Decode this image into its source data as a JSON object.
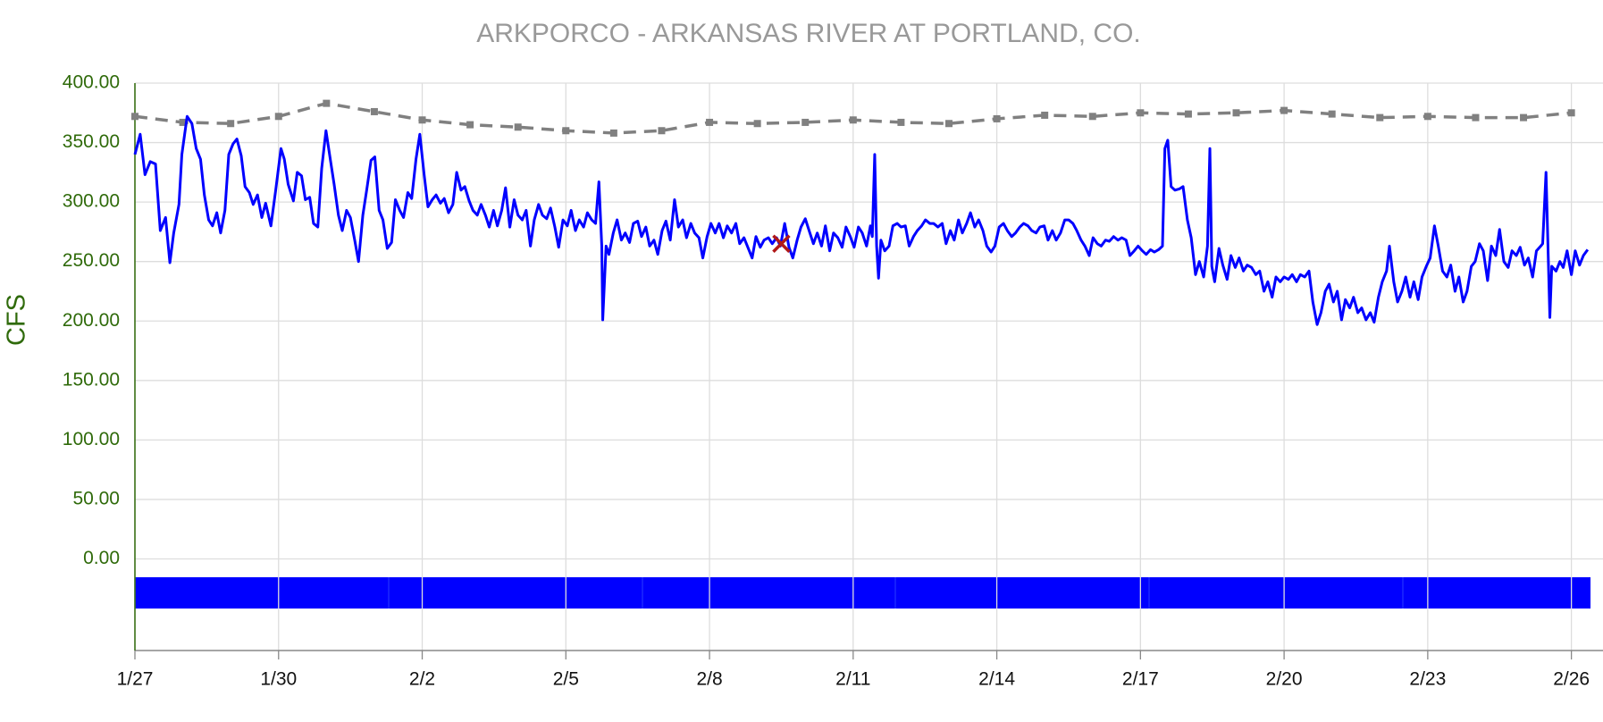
{
  "chart_data": {
    "type": "line",
    "title": "ARKPORCO - ARKANSAS RIVER AT PORTLAND, CO.",
    "y_label": "CFS",
    "xlim": [
      0,
      30.66
    ],
    "xticks": [
      {
        "value": 0,
        "label": "1/27"
      },
      {
        "value": 3,
        "label": "1/30"
      },
      {
        "value": 6,
        "label": "2/2"
      },
      {
        "value": 9,
        "label": "2/5"
      },
      {
        "value": 12,
        "label": "2/8"
      },
      {
        "value": 15,
        "label": "2/11"
      },
      {
        "value": 18,
        "label": "2/14"
      },
      {
        "value": 21,
        "label": "2/17"
      },
      {
        "value": 24,
        "label": "2/20"
      },
      {
        "value": 27,
        "label": "2/23"
      },
      {
        "value": 30,
        "label": "2/26"
      }
    ],
    "ylim": [
      -77,
      400
    ],
    "yticks": [
      {
        "value": 0,
        "label": "0.00"
      },
      {
        "value": 50,
        "label": "50.00"
      },
      {
        "value": 100,
        "label": "100.00"
      },
      {
        "value": 150,
        "label": "150.00"
      },
      {
        "value": 200,
        "label": "200.00"
      },
      {
        "value": 250,
        "label": "250.00"
      },
      {
        "value": 300,
        "label": "300.00"
      },
      {
        "value": 350,
        "label": "350.00"
      },
      {
        "value": 400,
        "label": "400.00"
      }
    ],
    "grid": true,
    "series": [
      {
        "color": "#0000ff",
        "line": "solid",
        "marker": "none",
        "x": [
          0,
          0.11,
          0.21,
          0.32,
          0.43,
          0.53,
          0.64,
          0.73,
          0.81,
          0.92,
          0.98,
          1.09,
          1.19,
          1.28,
          1.37,
          1.45,
          1.54,
          1.62,
          1.71,
          1.79,
          1.88,
          1.96,
          2.05,
          2.13,
          2.22,
          2.3,
          2.39,
          2.47,
          2.56,
          2.65,
          2.73,
          2.84,
          2.94,
          3.05,
          3.12,
          3.2,
          3.31,
          3.39,
          3.48,
          3.56,
          3.65,
          3.73,
          3.82,
          3.9,
          3.99,
          4.08,
          4.16,
          4.25,
          4.33,
          4.42,
          4.5,
          4.59,
          4.67,
          4.76,
          4.84,
          4.93,
          5.01,
          5.1,
          5.18,
          5.27,
          5.36,
          5.44,
          5.53,
          5.61,
          5.7,
          5.78,
          5.87,
          5.95,
          6.04,
          6.12,
          6.21,
          6.29,
          6.38,
          6.46,
          6.55,
          6.64,
          6.72,
          6.81,
          6.89,
          6.98,
          7.06,
          7.15,
          7.23,
          7.32,
          7.4,
          7.49,
          7.57,
          7.66,
          7.74,
          7.83,
          7.92,
          8.0,
          8.09,
          8.17,
          8.26,
          8.34,
          8.43,
          8.51,
          8.6,
          8.68,
          8.77,
          8.85,
          8.94,
          9.03,
          9.11,
          9.2,
          9.28,
          9.37,
          9.45,
          9.54,
          9.62,
          9.69,
          9.75,
          9.77,
          9.84,
          9.9,
          9.99,
          10.07,
          10.16,
          10.24,
          10.33,
          10.41,
          10.5,
          10.58,
          10.67,
          10.75,
          10.84,
          10.92,
          11.01,
          11.09,
          11.18,
          11.27,
          11.35,
          11.44,
          11.52,
          11.61,
          11.69,
          11.78,
          11.86,
          11.95,
          12.03,
          12.12,
          12.2,
          12.29,
          12.37,
          12.46,
          12.55,
          12.63,
          12.72,
          12.8,
          12.89,
          12.97,
          13.06,
          13.14,
          13.23,
          13.31,
          13.4,
          13.48,
          13.57,
          13.66,
          13.74,
          13.83,
          13.91,
          14.0,
          14.08,
          14.17,
          14.25,
          14.34,
          14.42,
          14.51,
          14.59,
          14.68,
          14.77,
          14.85,
          14.94,
          15.02,
          15.11,
          15.19,
          15.28,
          15.36,
          15.4,
          15.45,
          15.49,
          15.53,
          15.58,
          15.66,
          15.75,
          15.83,
          15.92,
          16.0,
          16.09,
          16.17,
          16.26,
          16.34,
          16.43,
          16.51,
          16.6,
          16.68,
          16.77,
          16.86,
          16.94,
          17.03,
          17.11,
          17.2,
          17.28,
          17.37,
          17.45,
          17.54,
          17.62,
          17.71,
          17.79,
          17.88,
          17.96,
          18.05,
          18.14,
          18.22,
          18.31,
          18.39,
          18.48,
          18.56,
          18.65,
          18.73,
          18.82,
          18.9,
          18.99,
          19.07,
          19.16,
          19.24,
          19.33,
          19.42,
          19.5,
          19.59,
          19.67,
          19.76,
          19.84,
          19.93,
          20.01,
          20.1,
          20.18,
          20.27,
          20.35,
          20.44,
          20.53,
          20.61,
          20.7,
          20.78,
          20.87,
          20.95,
          21.04,
          21.12,
          21.21,
          21.29,
          21.38,
          21.46,
          21.51,
          21.57,
          21.64,
          21.72,
          21.81,
          21.89,
          21.98,
          22.06,
          22.15,
          22.23,
          22.32,
          22.4,
          22.45,
          22.49,
          22.55,
          22.64,
          22.72,
          22.81,
          22.89,
          22.98,
          23.06,
          23.15,
          23.23,
          23.32,
          23.41,
          23.49,
          23.58,
          23.66,
          23.75,
          23.83,
          23.92,
          24.0,
          24.09,
          24.17,
          24.26,
          24.34,
          24.43,
          24.52,
          24.6,
          24.69,
          24.77,
          24.86,
          24.94,
          25.03,
          25.11,
          25.2,
          25.28,
          25.37,
          25.45,
          25.54,
          25.62,
          25.71,
          25.8,
          25.88,
          25.97,
          26.05,
          26.14,
          26.2,
          26.29,
          26.37,
          26.46,
          26.54,
          26.63,
          26.71,
          26.8,
          26.88,
          26.97,
          27.05,
          27.14,
          27.22,
          27.31,
          27.4,
          27.48,
          27.57,
          27.65,
          27.74,
          27.82,
          27.91,
          27.99,
          28.08,
          28.16,
          28.25,
          28.33,
          28.42,
          28.5,
          28.59,
          28.68,
          28.76,
          28.85,
          28.93,
          29.02,
          29.1,
          29.19,
          29.27,
          29.36,
          29.4,
          29.47,
          29.55,
          29.59,
          29.68,
          29.76,
          29.83,
          29.91,
          30.0,
          30.08,
          30.17,
          30.25,
          30.34
        ],
        "values": [
          340,
          357,
          323,
          334,
          332,
          276,
          287,
          249,
          274,
          298,
          340,
          372,
          366,
          345,
          336,
          306,
          285,
          280,
          291,
          274,
          293,
          340,
          349,
          353,
          339,
          313,
          308,
          298,
          306,
          287,
          299,
          280,
          310,
          345,
          336,
          315,
          301,
          325,
          322,
          302,
          304,
          282,
          279,
          328,
          360,
          336,
          315,
          289,
          276,
          293,
          287,
          268,
          250,
          289,
          310,
          335,
          338,
          293,
          285,
          261,
          266,
          302,
          293,
          287,
          308,
          303,
          336,
          357,
          323,
          296,
          302,
          306,
          299,
          303,
          291,
          298,
          325,
          310,
          313,
          301,
          293,
          289,
          298,
          289,
          279,
          293,
          280,
          293,
          312,
          279,
          302,
          289,
          285,
          293,
          263,
          285,
          298,
          289,
          286,
          295,
          279,
          262,
          285,
          280,
          293,
          276,
          285,
          279,
          291,
          285,
          282,
          317,
          263,
          201,
          263,
          256,
          274,
          285,
          268,
          274,
          266,
          282,
          284,
          271,
          279,
          263,
          268,
          256,
          276,
          284,
          268,
          302,
          279,
          285,
          270,
          282,
          274,
          270,
          253,
          271,
          282,
          274,
          282,
          270,
          280,
          274,
          282,
          265,
          270,
          262,
          253,
          271,
          262,
          268,
          270,
          265,
          270,
          263,
          282,
          262,
          253,
          268,
          279,
          286,
          276,
          265,
          274,
          263,
          280,
          259,
          274,
          270,
          262,
          279,
          271,
          262,
          279,
          274,
          263,
          280,
          271,
          340,
          263,
          236,
          268,
          259,
          263,
          280,
          282,
          279,
          280,
          263,
          271,
          276,
          280,
          285,
          282,
          282,
          279,
          282,
          265,
          276,
          268,
          285,
          274,
          282,
          291,
          279,
          285,
          276,
          263,
          258,
          263,
          279,
          282,
          276,
          271,
          274,
          279,
          282,
          280,
          276,
          274,
          279,
          280,
          268,
          276,
          268,
          274,
          285,
          285,
          282,
          276,
          268,
          263,
          255,
          270,
          265,
          263,
          268,
          267,
          271,
          268,
          270,
          268,
          255,
          259,
          263,
          259,
          256,
          260,
          258,
          260,
          263,
          345,
          352,
          313,
          310,
          311,
          313,
          285,
          270,
          239,
          250,
          237,
          263,
          345,
          246,
          233,
          261,
          247,
          235,
          255,
          245,
          253,
          242,
          247,
          245,
          239,
          242,
          225,
          233,
          220,
          237,
          233,
          237,
          235,
          239,
          233,
          239,
          237,
          242,
          216,
          197,
          207,
          225,
          231,
          216,
          225,
          201,
          218,
          211,
          220,
          207,
          211,
          201,
          207,
          199,
          220,
          233,
          242,
          263,
          233,
          216,
          225,
          237,
          220,
          233,
          218,
          237,
          246,
          253,
          280,
          263,
          242,
          237,
          247,
          225,
          237,
          216,
          225,
          246,
          250,
          265,
          259,
          234,
          263,
          255,
          277,
          250,
          245,
          259,
          255,
          262,
          247,
          253,
          237,
          259,
          263,
          265,
          325,
          203,
          246,
          242,
          250,
          245,
          259,
          239,
          259,
          247,
          255,
          260
        ]
      },
      {
        "color": "#808080",
        "line": "dashed",
        "marker": "square",
        "x": [
          0,
          1,
          2,
          3,
          4,
          5,
          6,
          7,
          8,
          9,
          10,
          11,
          12,
          13,
          14,
          15,
          16,
          17,
          18,
          19,
          20,
          21,
          22,
          23,
          24,
          25,
          26,
          27,
          28,
          29,
          30
        ],
        "values": [
          372,
          367,
          366,
          372,
          383,
          376,
          369,
          365,
          363,
          360,
          358,
          360,
          367,
          366,
          367,
          369,
          367,
          366,
          370,
          373,
          372,
          375,
          374,
          375,
          377,
          374,
          371,
          372,
          371,
          371,
          375
        ]
      },
      {
        "color": "#b01818",
        "line": "none",
        "marker": "x",
        "x": [
          13.5
        ],
        "values": [
          265
        ]
      }
    ]
  }
}
